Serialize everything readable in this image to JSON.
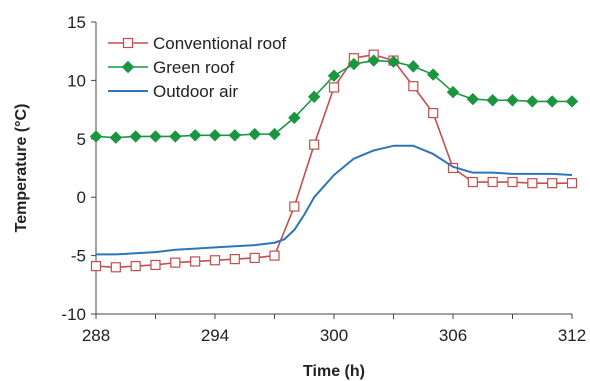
{
  "chart_data": {
    "type": "line",
    "title": "",
    "xlabel": "Time (h)",
    "ylabel": "Temperature (°C)",
    "xlim": [
      288,
      312
    ],
    "ylim": [
      -10,
      15
    ],
    "xticks": [
      "288",
      "294",
      "300",
      "306",
      "312"
    ],
    "yticks": [
      "-10",
      "-5",
      "0",
      "5",
      "10",
      "15"
    ],
    "grid": false,
    "legend_position": "top-left",
    "series": [
      {
        "name": "Conventional roof",
        "color": "#c0504d",
        "marker": "square-open",
        "x": [
          288,
          289,
          290,
          291,
          292,
          293,
          294,
          295,
          296,
          297,
          298,
          299,
          300,
          301,
          302,
          303,
          304,
          305,
          306,
          307,
          308,
          309,
          310,
          311,
          312
        ],
        "y": [
          -5.9,
          -6.0,
          -5.9,
          -5.8,
          -5.6,
          -5.5,
          -5.4,
          -5.3,
          -5.2,
          -5.0,
          -0.8,
          4.5,
          9.4,
          11.9,
          12.2,
          11.7,
          9.5,
          7.2,
          2.5,
          1.3,
          1.3,
          1.3,
          1.2,
          1.2,
          1.2
        ]
      },
      {
        "name": "Green roof",
        "color": "#1a9641",
        "marker": "diamond-filled",
        "x": [
          288,
          289,
          290,
          291,
          292,
          293,
          294,
          295,
          296,
          297,
          298,
          299,
          300,
          301,
          302,
          303,
          304,
          305,
          306,
          307,
          308,
          309,
          310,
          311,
          312
        ],
        "y": [
          5.2,
          5.1,
          5.2,
          5.2,
          5.2,
          5.3,
          5.3,
          5.3,
          5.4,
          5.4,
          6.8,
          8.6,
          10.4,
          11.4,
          11.7,
          11.6,
          11.2,
          10.5,
          9.0,
          8.4,
          8.3,
          8.3,
          8.2,
          8.2,
          8.2
        ]
      },
      {
        "name": "Outdoor air",
        "color": "#2e75b6",
        "marker": "none",
        "x": [
          288,
          289,
          290,
          291,
          292,
          293,
          294,
          295,
          296,
          297,
          297.5,
          298,
          298.5,
          299,
          300,
          301,
          302,
          303,
          304,
          305,
          306,
          307,
          308,
          309,
          310,
          311,
          312
        ],
        "y": [
          -4.9,
          -4.9,
          -4.8,
          -4.7,
          -4.5,
          -4.4,
          -4.3,
          -4.2,
          -4.1,
          -3.9,
          -3.6,
          -2.8,
          -1.5,
          0.0,
          1.9,
          3.3,
          4.0,
          4.4,
          4.4,
          3.7,
          2.6,
          2.1,
          2.1,
          2.0,
          2.0,
          2.0,
          1.9
        ]
      }
    ]
  }
}
